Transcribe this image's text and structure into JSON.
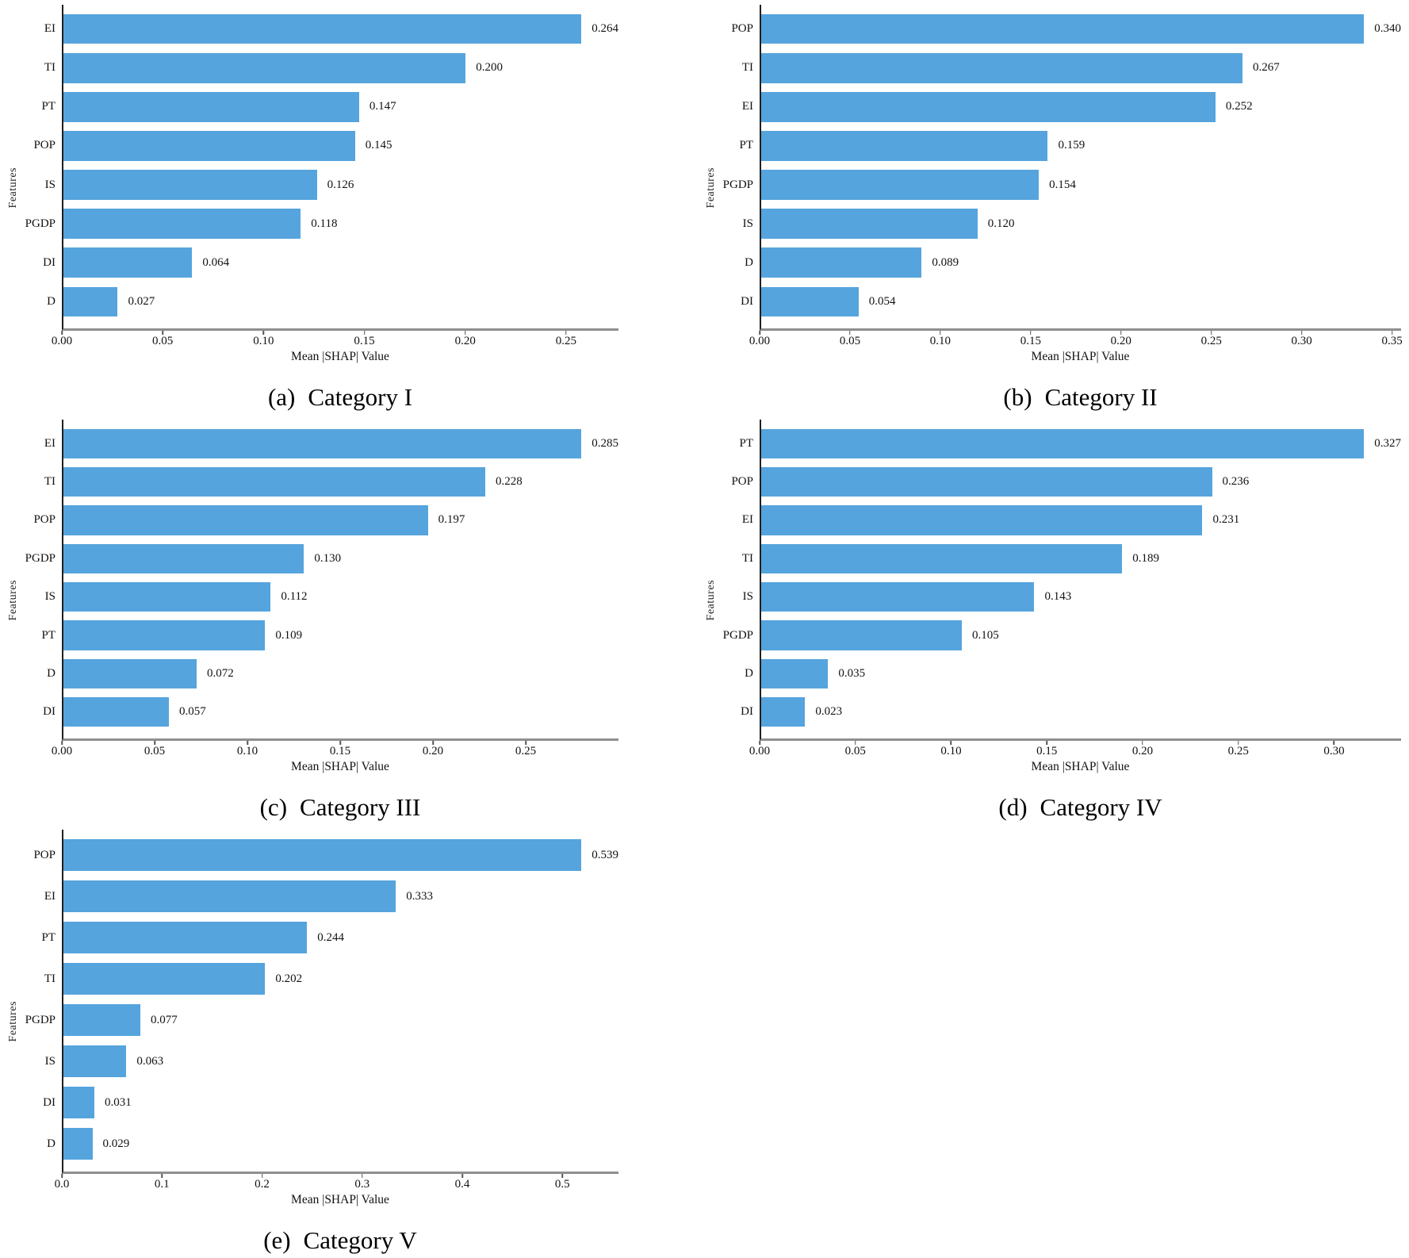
{
  "figure": {
    "bar_color": "#55a4dd",
    "axis_spine_color": "#1f1f1f",
    "bottom_spine_color": "#8f8f8f",
    "background": "#ffffff"
  },
  "chart_data": [
    {
      "type": "bar",
      "orientation": "horizontal",
      "panel_label": "(a)",
      "caption": "Category I",
      "xlabel": "Mean |SHAP| Value",
      "ylabel": "Features",
      "categories": [
        "EI",
        "TI",
        "PT",
        "POP",
        "IS",
        "PGDP",
        "DI",
        "D"
      ],
      "values": [
        0.264,
        0.2,
        0.147,
        0.145,
        0.126,
        0.118,
        0.064,
        0.027
      ],
      "value_labels": [
        "0.264",
        "0.200",
        "0.147",
        "0.145",
        "0.126",
        "0.118",
        "0.064",
        "0.027"
      ],
      "xlim": [
        0,
        0.276
      ],
      "xtick_values": [
        0,
        0.05,
        0.1,
        0.15,
        0.2,
        0.25
      ],
      "xtick_labels": [
        "0.00",
        "0.05",
        "0.10",
        "0.15",
        "0.20",
        "0.25"
      ],
      "grid": false,
      "legend": null
    },
    {
      "type": "bar",
      "orientation": "horizontal",
      "panel_label": "(b)",
      "caption": "Category II",
      "xlabel": "Mean |SHAP| Value",
      "ylabel": "Features",
      "categories": [
        "POP",
        "TI",
        "EI",
        "PT",
        "PGDP",
        "IS",
        "D",
        "DI"
      ],
      "values": [
        0.34,
        0.267,
        0.252,
        0.159,
        0.154,
        0.12,
        0.089,
        0.054
      ],
      "value_labels": [
        "0.340",
        "0.267",
        "0.252",
        "0.159",
        "0.154",
        "0.120",
        "0.089",
        "0.054"
      ],
      "xlim": [
        0,
        0.355
      ],
      "xtick_values": [
        0,
        0.05,
        0.1,
        0.15,
        0.2,
        0.25,
        0.3,
        0.35
      ],
      "xtick_labels": [
        "0.00",
        "0.05",
        "0.10",
        "0.15",
        "0.20",
        "0.25",
        "0.30",
        "0.35"
      ],
      "grid": false,
      "legend": null
    },
    {
      "type": "bar",
      "orientation": "horizontal",
      "panel_label": "(c)",
      "caption": "Category III",
      "xlabel": "Mean |SHAP| Value",
      "ylabel": "Features",
      "categories": [
        "EI",
        "TI",
        "POP",
        "PGDP",
        "IS",
        "PT",
        "D",
        "DI"
      ],
      "values": [
        0.285,
        0.228,
        0.197,
        0.13,
        0.112,
        0.109,
        0.072,
        0.057
      ],
      "value_labels": [
        "0.285",
        "0.228",
        "0.197",
        "0.130",
        "0.112",
        "0.109",
        "0.072",
        "0.057"
      ],
      "xlim": [
        0,
        0.3
      ],
      "xtick_values": [
        0,
        0.05,
        0.1,
        0.15,
        0.2,
        0.25
      ],
      "xtick_labels": [
        "0.00",
        "0.05",
        "0.10",
        "0.15",
        "0.20",
        "0.25"
      ],
      "grid": false,
      "legend": null
    },
    {
      "type": "bar",
      "orientation": "horizontal",
      "panel_label": "(d)",
      "caption": "Category IV",
      "xlabel": "Mean |SHAP| Value",
      "ylabel": "Features",
      "categories": [
        "PT",
        "POP",
        "EI",
        "TI",
        "IS",
        "PGDP",
        "D",
        "DI"
      ],
      "values": [
        0.327,
        0.236,
        0.231,
        0.189,
        0.143,
        0.105,
        0.035,
        0.023
      ],
      "value_labels": [
        "0.327",
        "0.236",
        "0.231",
        "0.189",
        "0.143",
        "0.105",
        "0.035",
        "0.023"
      ],
      "xlim": [
        0,
        0.335
      ],
      "xtick_values": [
        0,
        0.05,
        0.1,
        0.15,
        0.2,
        0.25,
        0.3
      ],
      "xtick_labels": [
        "0.00",
        "0.05",
        "0.10",
        "0.15",
        "0.20",
        "0.25",
        "0.30"
      ],
      "grid": false,
      "legend": null
    },
    {
      "type": "bar",
      "orientation": "horizontal",
      "panel_label": "(e)",
      "caption": "Category V",
      "xlabel": "Mean |SHAP| Value",
      "ylabel": "Features",
      "categories": [
        "POP",
        "EI",
        "PT",
        "TI",
        "PGDP",
        "IS",
        "DI",
        "D"
      ],
      "values": [
        0.539,
        0.333,
        0.244,
        0.202,
        0.077,
        0.063,
        0.031,
        0.029
      ],
      "value_labels": [
        "0.539",
        "0.333",
        "0.244",
        "0.202",
        "0.077",
        "0.063",
        "0.031",
        "0.029"
      ],
      "xlim": [
        0,
        0.556
      ],
      "xtick_values": [
        0,
        0.1,
        0.2,
        0.3,
        0.4,
        0.5
      ],
      "xtick_labels": [
        "0.0",
        "0.1",
        "0.2",
        "0.3",
        "0.4",
        "0.5"
      ],
      "grid": false,
      "legend": null
    }
  ]
}
